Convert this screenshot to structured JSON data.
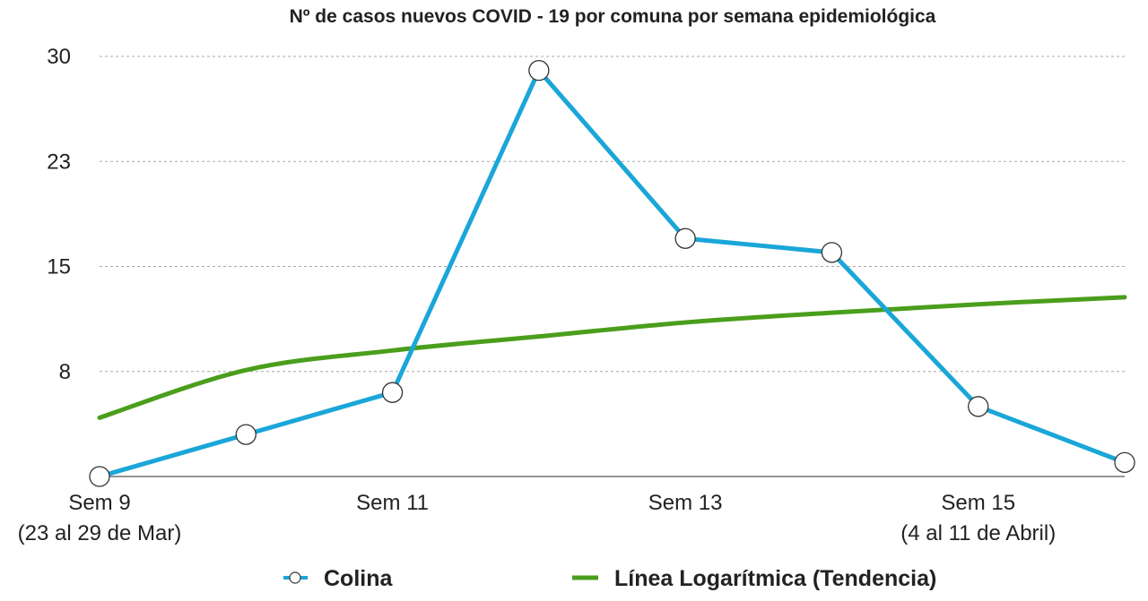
{
  "chart_data": {
    "type": "line",
    "title": "Nº de casos nuevos COVID - 19 por comuna por semana epidemiológica",
    "xlabel": "",
    "ylabel": "",
    "x_ticks": [
      {
        "label": "Sem 9",
        "sublabel": "(23 al 29 de Mar)",
        "index": 0
      },
      {
        "label": "Sem 11",
        "sublabel": "",
        "index": 2
      },
      {
        "label": "Sem 13",
        "sublabel": "",
        "index": 4
      },
      {
        "label": "Sem 15",
        "sublabel": "(4 al 11 de Abril)",
        "index": 6
      }
    ],
    "y_ticks": [
      {
        "label": "8",
        "value": 7.5
      },
      {
        "label": "15",
        "value": 15
      },
      {
        "label": "23",
        "value": 22.5
      },
      {
        "label": "30",
        "value": 30
      }
    ],
    "ylim": [
      0,
      30
    ],
    "grid": true,
    "legend_position": "bottom",
    "series": [
      {
        "name": "Colina",
        "color": "#1aa6d8",
        "marker": "open-circle",
        "x_index": [
          0,
          1,
          2,
          3,
          4,
          5,
          6,
          7
        ],
        "values": [
          0,
          3,
          6,
          29,
          17,
          16,
          5,
          1
        ]
      },
      {
        "name": "Línea Logarítmica (Tendencia)",
        "color": "#4a9e1c",
        "marker": "none",
        "trend": "logarithmic",
        "x_index": [
          0,
          1,
          2,
          3,
          4,
          5,
          6,
          7
        ],
        "values": [
          4.2,
          7.6,
          9.0,
          10.0,
          11.0,
          11.7,
          12.3,
          12.8
        ]
      }
    ]
  }
}
